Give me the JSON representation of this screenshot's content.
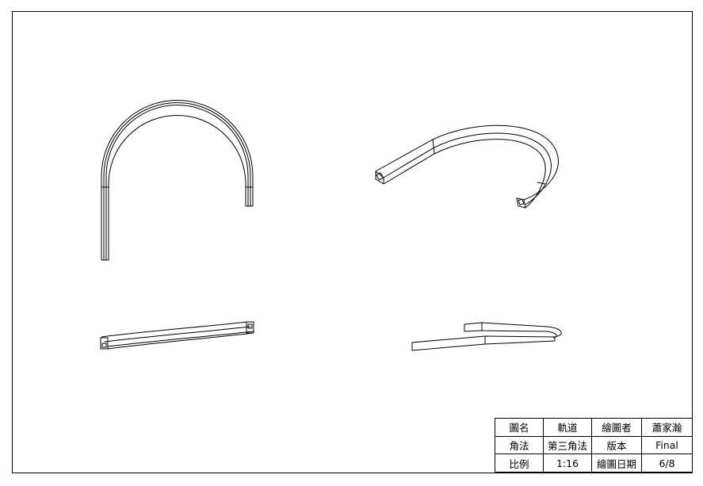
{
  "drawing": {
    "views": [
      {
        "name": "front-view"
      },
      {
        "name": "isometric-view"
      },
      {
        "name": "top-view"
      },
      {
        "name": "side-view"
      }
    ]
  },
  "title_block": {
    "rows": [
      [
        "圖名",
        "軌道",
        "繪圖者",
        "蕭家瀚"
      ],
      [
        "角法",
        "第三角法",
        "版本",
        "Final"
      ],
      [
        "比例",
        "1:16",
        "繪圖日期",
        "6/8"
      ]
    ]
  },
  "colors": {
    "line": "#000000",
    "background": "#ffffff"
  }
}
